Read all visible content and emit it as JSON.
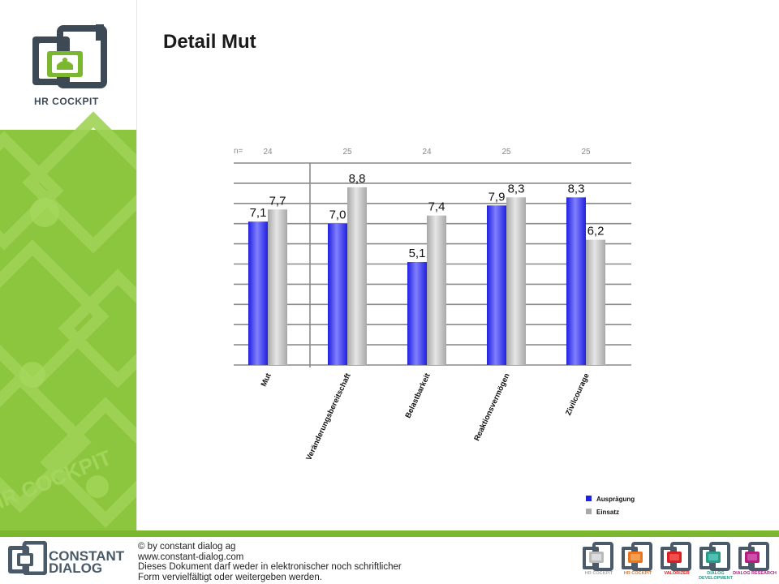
{
  "page": {
    "title": "Detail Mut"
  },
  "sidebar": {
    "logo_text": "HR COCKPIT",
    "watermark_text": "HR COCKPIT"
  },
  "chart_data": {
    "type": "bar",
    "categories": [
      "Mut",
      "Veränderungsbereitschaft",
      "Belastbarkeit",
      "Reaktionsvermögen",
      "Zivilcourage"
    ],
    "n_label": "n=",
    "n_values": [
      "24",
      "25",
      "24",
      "25",
      "25"
    ],
    "series": [
      {
        "name": "Ausprägung",
        "values": [
          7.1,
          7.0,
          5.1,
          7.9,
          8.3
        ],
        "labels": [
          "7,1",
          "7,0",
          "5,1",
          "7,9",
          "8,3"
        ],
        "color": "#2020e0"
      },
      {
        "name": "Einsatz",
        "values": [
          7.7,
          8.8,
          7.4,
          8.3,
          6.2
        ],
        "labels": [
          "7,7",
          "8,8",
          "7,4",
          "8,3",
          "6,2"
        ],
        "color": "#a8a8a8"
      }
    ],
    "ylim": [
      0,
      10
    ],
    "grid": true,
    "legend_position": "bottom-right"
  },
  "footer": {
    "brand_line1": "CONSTANT",
    "brand_line2": "DIALOG",
    "copyright": "© by constant dialog ag",
    "website": "www.constant-dialog.com",
    "notice_line1": "Dieses Dokument darf weder in elektronischer noch schriftlicher",
    "notice_line2": "Form vervielfältigt oder weitergeben werden.",
    "products": [
      {
        "label": "HR COCKPIT",
        "color": "#bbbbbb",
        "inner": "#dddddd"
      },
      {
        "label": "HR COCKPIT",
        "color": "#e87722",
        "inner": "#f5a050"
      },
      {
        "label": "VALORIZER",
        "color": "#d82020",
        "inner": "#f05050"
      },
      {
        "label": "DIALOG DEVELOPMENT",
        "color": "#2a9a8a",
        "inner": "#50c0b0"
      },
      {
        "label": "DIALOG RESEARCH",
        "color": "#b02080",
        "inner": "#d050a8"
      }
    ]
  }
}
